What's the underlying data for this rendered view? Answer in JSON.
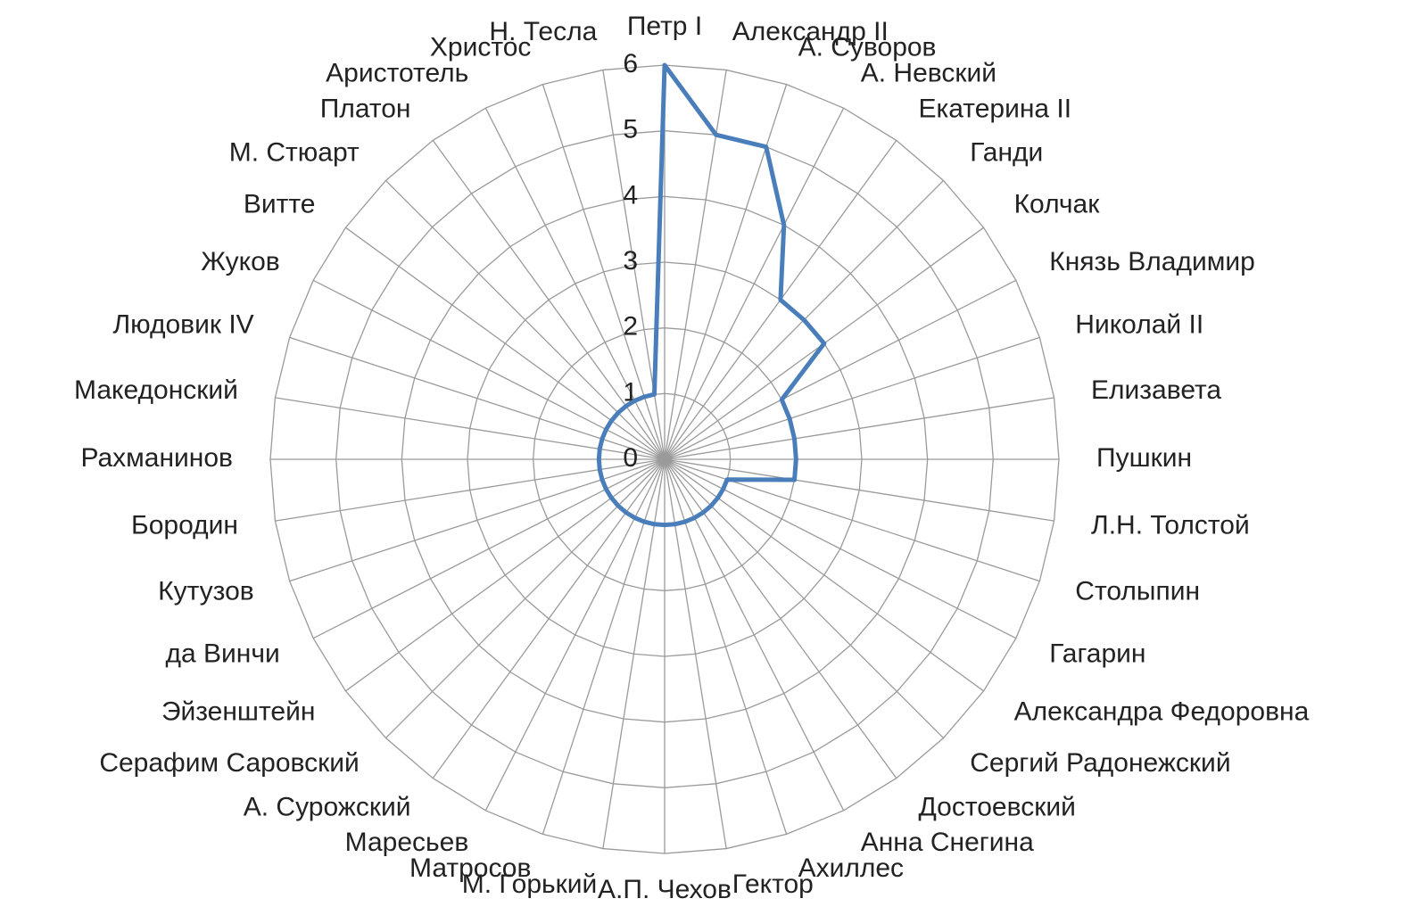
{
  "chart_data": {
    "type": "radar",
    "categories": [
      "Петр I",
      "Александр II",
      "А. Суворов",
      "А. Невский",
      "Екатерина II",
      "Ганди",
      "Колчак",
      "Князь Владимир",
      "Николай II",
      "Елизавета",
      "Пушкин",
      "Л.Н. Толстой",
      "Столыпин",
      "Гагарин",
      "Александра Федоровна",
      "Сергий Радонежский",
      "Достоевский",
      "Анна Снегина",
      "Ахиллес",
      "Гектор",
      "А.П. Чехов",
      "М. Горький",
      "Матросов",
      "Маресьев",
      "А. Сурожский",
      "Серафим Саровский",
      "Эйзенштейн",
      "да Винчи",
      "Кутузов",
      "Бородин",
      "Рахманинов",
      "Македонский",
      "Людовик IV",
      "Жуков",
      "Витте",
      "М. Стюарт",
      "Платон",
      "Аристотель",
      "Христос",
      "Н. Тесла"
    ],
    "values": [
      6,
      5,
      5,
      4,
      3,
      3,
      3,
      2,
      2,
      2,
      2,
      2,
      1,
      1,
      1,
      1,
      1,
      1,
      1,
      1,
      1,
      1,
      1,
      1,
      1,
      1,
      1,
      1,
      1,
      1,
      1,
      1,
      1,
      1,
      1,
      1,
      1,
      1,
      1,
      1
    ],
    "color": "#4a7ebb",
    "ylim": [
      0,
      6
    ],
    "yticks": [
      0,
      1,
      2,
      3,
      4,
      5,
      6
    ],
    "grid": true
  }
}
